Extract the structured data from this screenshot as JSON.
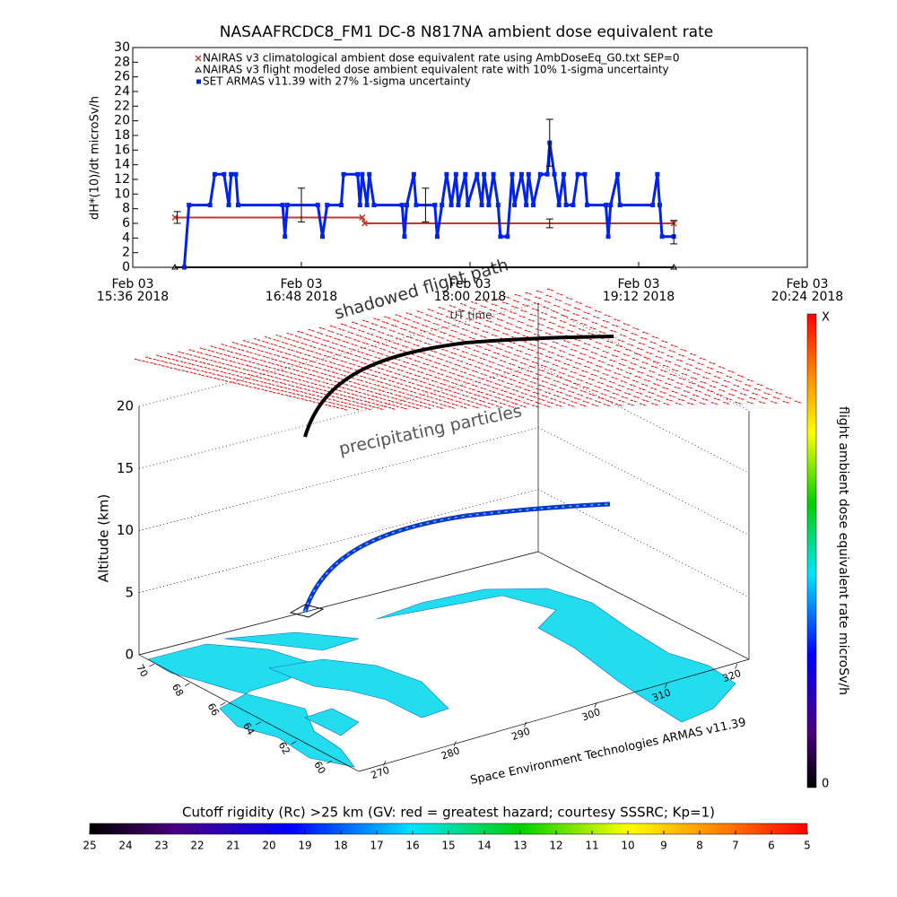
{
  "chart_data": [
    {
      "type": "line",
      "title": "NASAAFRCDC8_FM1 DC-8    N817NA ambient dose equivalent rate",
      "ylabel": "dH*(10)/dt microSv/h",
      "ylim": [
        0,
        30
      ],
      "yticks": [
        0,
        2,
        4,
        6,
        8,
        10,
        12,
        14,
        16,
        18,
        20,
        22,
        24,
        26,
        28,
        30
      ],
      "xlim": [
        "2018-02-03T15:36",
        "2018-02-03T20:24"
      ],
      "xticks": [
        {
          "value": "2018-02-03T15:36",
          "label": "Feb 03\n15:36 2018"
        },
        {
          "value": "2018-02-03T16:48",
          "label": "Feb 03\n16:48 2018"
        },
        {
          "value": "2018-02-03T18:00",
          "label": "Feb 03\n18:00 2018"
        },
        {
          "value": "2018-02-03T19:12",
          "label": "Feb 03\n19:12 2018"
        },
        {
          "value": "2018-02-03T20:24",
          "label": "Feb 03\n20:24 2018"
        }
      ],
      "series": [
        {
          "name": "NAIRAS v3 climatological ambient dose equivalent rate using AmbDoseEq_G0.txt SEP=0",
          "color": "#c0392b",
          "marker": "x",
          "x": [
            "2018-02-03T15:54",
            "2018-02-03T17:14",
            "2018-02-03T17:15",
            "2018-02-03T19:27"
          ],
          "values": [
            6.8,
            6.8,
            6.0,
            6.0
          ]
        },
        {
          "name": "NAIRAS v3 flight modeled dose ambient equivalent rate with 10% 1-sigma uncertainty",
          "color": "#000000",
          "marker": "triangle",
          "x": [
            "2018-02-03T15:54",
            "2018-02-03T19:27"
          ],
          "values": [
            0,
            0
          ]
        },
        {
          "name": "SET ARMAS v11.39 with 27% 1-sigma uncertainty",
          "color": "#0022ee",
          "marker": "square",
          "x": [
            "2018-02-03T15:58",
            "2018-02-03T16:00",
            "2018-02-03T16:09",
            "2018-02-03T16:11",
            "2018-02-03T16:15",
            "2018-02-03T16:17",
            "2018-02-03T16:18",
            "2018-02-03T16:20",
            "2018-02-03T16:21",
            "2018-02-03T16:40",
            "2018-02-03T16:41",
            "2018-02-03T16:42",
            "2018-02-03T16:55",
            "2018-02-03T16:57",
            "2018-02-03T16:59",
            "2018-02-03T17:05",
            "2018-02-03T17:06",
            "2018-02-03T17:12",
            "2018-02-03T17:13",
            "2018-02-03T17:14",
            "2018-02-03T17:16",
            "2018-02-03T17:17",
            "2018-02-03T17:19",
            "2018-02-03T17:31",
            "2018-02-03T17:32",
            "2018-02-03T17:33",
            "2018-02-03T17:36",
            "2018-02-03T17:37",
            "2018-02-03T17:45",
            "2018-02-03T17:46",
            "2018-02-03T17:48",
            "2018-02-03T17:50",
            "2018-02-03T17:52",
            "2018-02-03T17:54",
            "2018-02-03T17:55",
            "2018-02-03T17:58",
            "2018-02-03T17:59",
            "2018-02-03T18:03",
            "2018-02-03T18:05",
            "2018-02-03T18:06",
            "2018-02-03T18:08",
            "2018-02-03T18:10",
            "2018-02-03T18:12",
            "2018-02-03T18:13",
            "2018-02-03T18:16",
            "2018-02-03T18:18",
            "2018-02-03T18:19",
            "2018-02-03T18:22",
            "2018-02-03T18:24",
            "2018-02-03T18:25",
            "2018-02-03T18:27",
            "2018-02-03T18:30",
            "2018-02-03T18:33",
            "2018-02-03T18:34",
            "2018-02-03T18:36",
            "2018-02-03T18:38",
            "2018-02-03T18:40",
            "2018-02-03T18:41",
            "2018-02-03T18:44",
            "2018-02-03T18:46",
            "2018-02-03T18:49",
            "2018-02-03T18:50",
            "2018-02-03T18:58",
            "2018-02-03T18:59",
            "2018-02-03T19:00",
            "2018-02-03T19:03",
            "2018-02-03T19:04",
            "2018-02-03T19:18",
            "2018-02-03T19:20",
            "2018-02-03T19:21",
            "2018-02-03T19:22",
            "2018-02-03T19:27"
          ],
          "values": [
            0,
            8.5,
            8.5,
            12.7,
            12.7,
            8.5,
            12.7,
            12.7,
            8.5,
            8.5,
            4.2,
            8.5,
            8.5,
            4.2,
            8.5,
            8.5,
            12.7,
            12.7,
            8.5,
            12.7,
            8.5,
            12.7,
            8.5,
            8.5,
            4.2,
            8.5,
            12.7,
            8.5,
            8.5,
            4.2,
            8.5,
            12.7,
            8.5,
            12.7,
            8.5,
            12.7,
            8.5,
            12.7,
            8.5,
            12.7,
            8.5,
            12.7,
            8.5,
            4.2,
            4.2,
            12.7,
            8.5,
            12.7,
            8.5,
            12.7,
            8.5,
            12.7,
            12.7,
            17,
            12.7,
            8.5,
            12.7,
            8.5,
            8.5,
            12.7,
            12.7,
            8.5,
            8.5,
            4.2,
            8.5,
            12.7,
            8.5,
            8.5,
            12.7,
            8.5,
            4.2,
            4.2
          ]
        }
      ],
      "error_bars": {
        "x": [
          "2018-02-03T15:55",
          "2018-02-03T16:48",
          "2018-02-03T17:41",
          "2018-02-03T18:34",
          "2018-02-03T18:34",
          "2018-02-03T19:27"
        ],
        "values": [
          6.8,
          8.5,
          8.5,
          17,
          6.0,
          4.8
        ],
        "errors": [
          0.8,
          2.3,
          2.3,
          3.2,
          0.6,
          1.6
        ]
      }
    },
    {
      "type": "surface3d",
      "annotations": [
        "shadowed flight path",
        "precipitating particles",
        "UT time"
      ],
      "zlabel": "Altitude (km)",
      "zlim": [
        0,
        20
      ],
      "zticks": [
        0,
        5,
        10,
        15,
        20
      ],
      "lat_ticks": [
        70,
        68,
        66,
        64,
        62,
        60
      ],
      "lon_ticks": [
        270,
        280,
        290,
        300,
        310,
        320
      ],
      "credit": "Space Environment Technologies ARMAS v11.39",
      "colorbar": {
        "title": "flight ambient dose equivalent rate microSv/h",
        "labels": [
          "X",
          "0"
        ]
      },
      "rc_colorbar": {
        "title": "Cutoff rigidity (Rc) >25 km (GV: red = greatest hazard; courtesy SSSRC; Kp=1)",
        "ticks": [
          25,
          24,
          23,
          22,
          21,
          20,
          19,
          18,
          17,
          16,
          15,
          14,
          13,
          12,
          11,
          10,
          9,
          8,
          7,
          6,
          5
        ]
      }
    }
  ]
}
